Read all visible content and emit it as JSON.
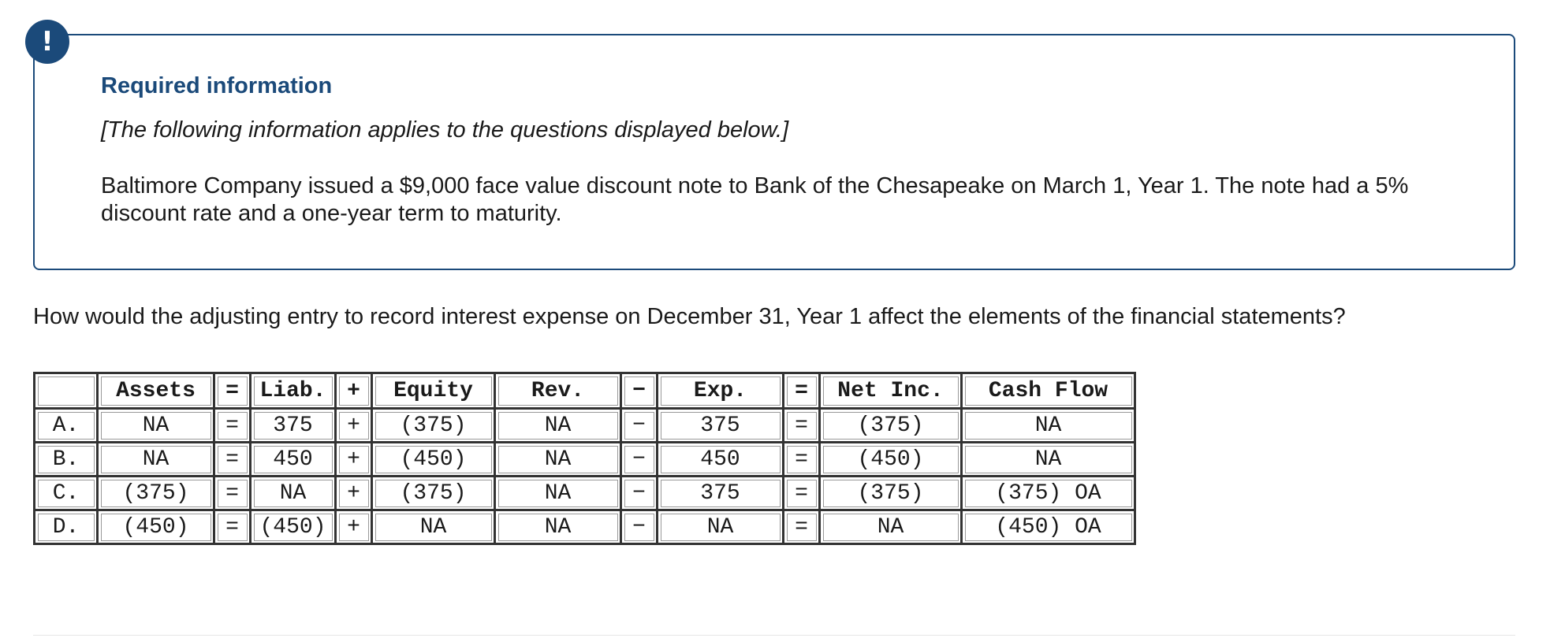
{
  "badge": {
    "symbol": "!"
  },
  "info": {
    "title": "Required information",
    "note": "[The following information applies to the questions displayed below.]",
    "body": "Baltimore Company issued a $9,000 face value discount note to Bank of the Chesapeake on March 1, Year 1. The note had a 5% discount rate and a one-year term to maturity."
  },
  "question": "How would the adjusting entry to record interest expense on December 31, Year 1 affect the elements of the financial statements?",
  "table": {
    "headers": [
      "",
      "Assets",
      "=",
      "Liab.",
      "+",
      "Equity",
      "Rev.",
      "−",
      "Exp.",
      "=",
      "Net Inc.",
      "Cash Flow"
    ],
    "rows": [
      [
        "A.",
        "NA",
        "=",
        "375",
        "+",
        "(375)",
        "NA",
        "−",
        "375",
        "=",
        "(375)",
        "NA"
      ],
      [
        "B.",
        "NA",
        "=",
        "450",
        "+",
        "(450)",
        "NA",
        "−",
        "450",
        "=",
        "(450)",
        "NA"
      ],
      [
        "C.",
        "(375)",
        "=",
        "NA",
        "+",
        "(375)",
        "NA",
        "−",
        "375",
        "=",
        "(375)",
        "(375) OA"
      ],
      [
        "D.",
        "(450)",
        "=",
        "(450)",
        "+",
        "NA",
        "NA",
        "−",
        "NA",
        "=",
        "NA",
        "(450) OA"
      ]
    ]
  },
  "colors": {
    "accent": "#1b4a7a",
    "text": "#1a1a1a",
    "table_border": "#333333"
  }
}
